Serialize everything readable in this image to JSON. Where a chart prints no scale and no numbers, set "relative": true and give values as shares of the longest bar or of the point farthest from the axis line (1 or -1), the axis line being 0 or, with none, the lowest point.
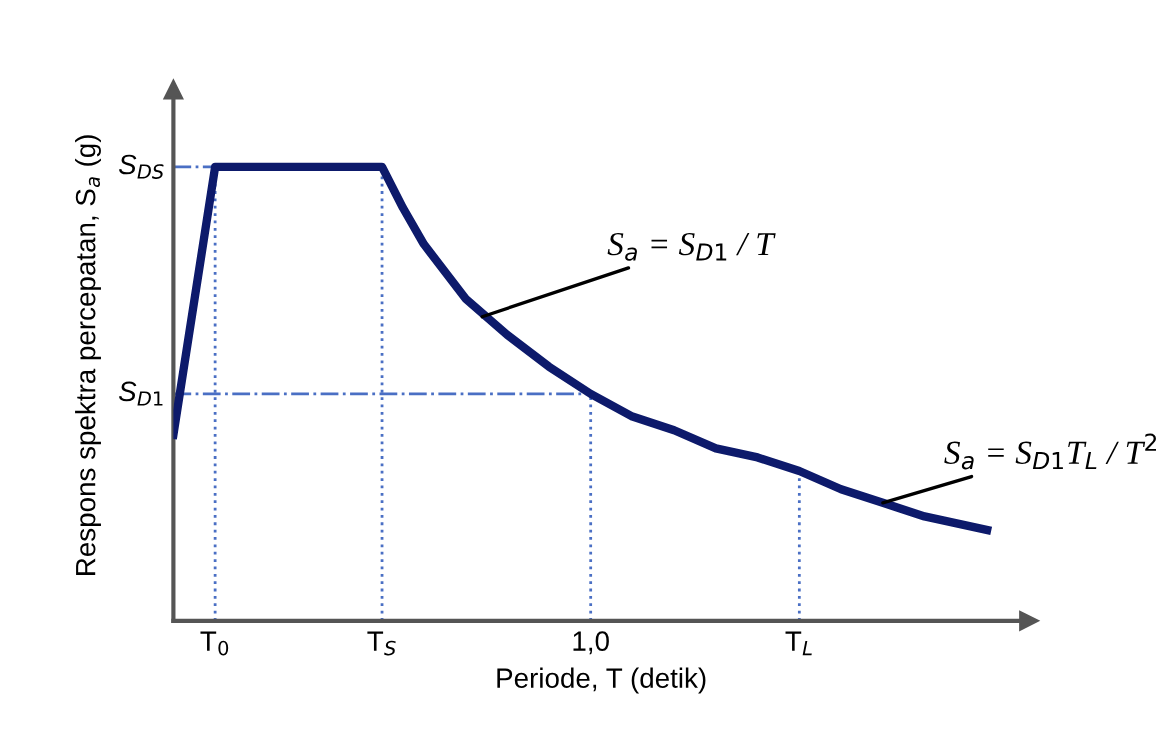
{
  "chart_data": {
    "type": "line",
    "relative": true,
    "xlabel": "Periode, T (detik)",
    "ylabel": "Respons spektra percepatan, S$_{a}$ (g)",
    "x": [
      0,
      0.1,
      0.5,
      0.55,
      0.6,
      0.7,
      0.8,
      0.9,
      1.0,
      1.1,
      1.2,
      1.3,
      1.4,
      1.5,
      1.6,
      1.7,
      1.8,
      1.95
    ],
    "series": [
      {
        "color": "#0d1a6b",
        "values": [
          0.41,
          1,
          1,
          0.91,
          0.83,
          0.71,
          0.63,
          0.56,
          0.5,
          0.45,
          0.42,
          0.38,
          0.36,
          0.33,
          0.29,
          0.26,
          0.23,
          0.2
        ]
      }
    ],
    "xlim": [
      0,
      2.05
    ],
    "xticks": [
      {
        "value": 0.1,
        "label": "T$_{0}$"
      },
      {
        "value": 0.5,
        "label": "T$_{S}$"
      },
      {
        "value": 1.0,
        "label": "1,0"
      },
      {
        "value": 1.5,
        "label": "T$_{L}$"
      }
    ],
    "ref_lines": [
      {
        "axis": "y",
        "value": 1,
        "label": "S$_{DS}$",
        "color": "#4a6fc4",
        "line_style": "dashdot"
      },
      {
        "axis": "y",
        "value": 0.5,
        "label": "S$_{D1}$",
        "color": "#4a6fc4",
        "line_style": "dashdot"
      },
      {
        "axis": "x",
        "value": 0.1,
        "color": "#4a6fc4",
        "line_style": "dotted"
      },
      {
        "axis": "x",
        "value": 0.5,
        "color": "#4a6fc4",
        "line_style": "dotted"
      },
      {
        "axis": "x",
        "value": 1.0,
        "color": "#4a6fc4",
        "line_style": "dotted"
      },
      {
        "axis": "x",
        "value": 1.5,
        "color": "#4a6fc4",
        "line_style": "dotted"
      }
    ],
    "annotations": [
      {
        "text": "S$_{a}$ = S$_{D1}$ / T",
        "x": 0.74,
        "y": 0.67
      },
      {
        "text": "S$_{a}$ = S$_{D1}$T$_{L}$ / T$^{2}$",
        "x": 1.7,
        "y": 0.26
      }
    ],
    "grid": false,
    "legend": false,
    "line_style": "solid",
    "marker": "none"
  }
}
